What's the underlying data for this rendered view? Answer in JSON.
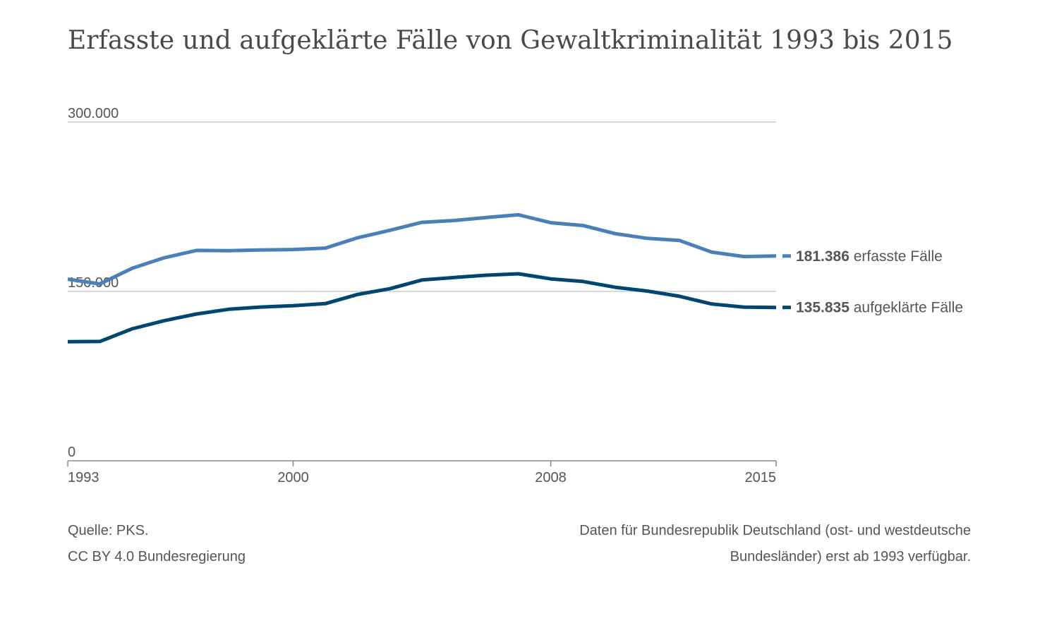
{
  "title": "Erfasste und aufgeklärte Fälle von Gewaltkriminalität 1993 bis 2015",
  "footer": {
    "source": "Quelle: PKS.",
    "license": "CC BY 4.0 Bundesregierung",
    "note_line1": "Daten für Bundesrepublik Deutschland (ost- und westdeutsche",
    "note_line2": "Bundesländer) erst ab 1993 verfügbar."
  },
  "colors": {
    "erfasst": "#4a7fb8",
    "aufgeklaert": "#00466e",
    "grid": "#cccccc",
    "axis": "#888888",
    "text": "#555555"
  },
  "chart_data": {
    "type": "line",
    "title": "Erfasste und aufgeklärte Fälle von Gewaltkriminalität 1993 bis 2015",
    "x": [
      1993,
      1994,
      1995,
      1996,
      1997,
      1998,
      1999,
      2000,
      2001,
      2002,
      2003,
      2004,
      2005,
      2006,
      2007,
      2008,
      2009,
      2010,
      2011,
      2012,
      2013,
      2014,
      2015
    ],
    "x_ticks": [
      "1993",
      "2000",
      "2008",
      "2015"
    ],
    "y_ticks": [
      "0",
      "150.000",
      "300.000"
    ],
    "y_tick_values": [
      0,
      150000,
      300000
    ],
    "ylim": [
      0,
      300000
    ],
    "xlim": [
      1993,
      2015
    ],
    "grid": true,
    "series": [
      {
        "key": "erfasst",
        "value_label": "181.386",
        "text_label": "erfasste Fälle",
        "values": [
          160900,
          156600,
          170500,
          179800,
          186300,
          186100,
          186700,
          187100,
          188400,
          197500,
          204100,
          211200,
          212800,
          215500,
          217900,
          210900,
          208400,
          201200,
          197000,
          195100,
          184800,
          180900,
          181386
        ]
      },
      {
        "key": "aufgeklaert",
        "value_label": "135.835",
        "text_label": "aufgeklärte Fälle",
        "values": [
          105500,
          105700,
          116900,
          124100,
          130000,
          134200,
          136200,
          137300,
          139200,
          147300,
          152400,
          160100,
          162300,
          164400,
          165600,
          161100,
          158800,
          153700,
          150300,
          145700,
          138900,
          136100,
          135835
        ]
      }
    ]
  }
}
